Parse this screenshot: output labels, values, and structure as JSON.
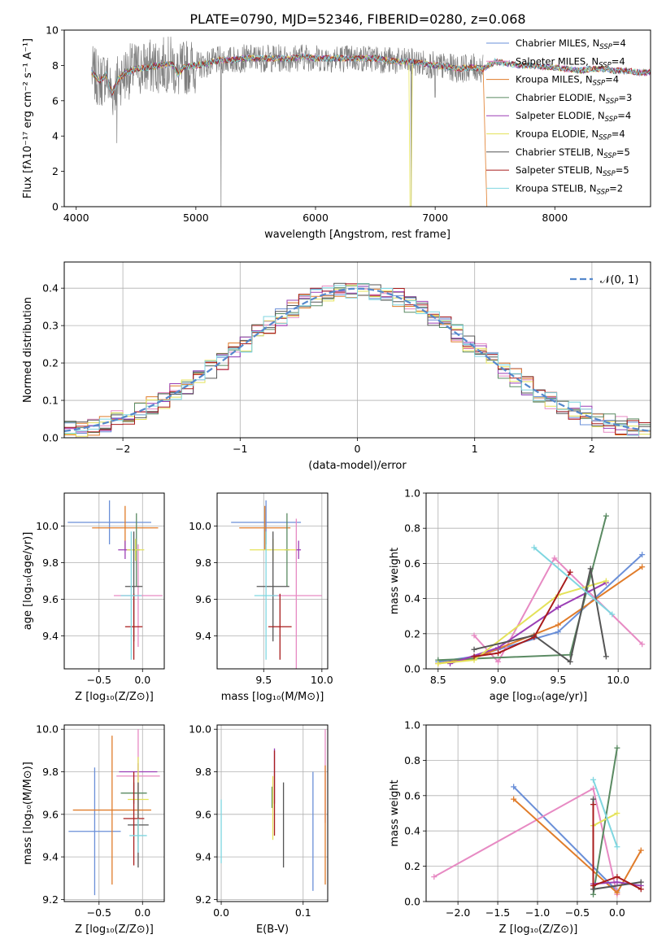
{
  "figure_title": "PLATE=0790, MJD=52346, FIBERID=0280, z=0.068",
  "colors": {
    "Chabrier MILES": "#6a8fd8",
    "Salpeter MILES": "#e78ac3",
    "Kroupa MILES": "#e07c2a",
    "Chabrier ELODIE": "#5a8a62",
    "Salpeter ELODIE": "#9b3fb5",
    "Kroupa ELODIE": "#e4e25a",
    "Chabrier STELIB": "#555555",
    "Salpeter STELIB": "#a81c1c",
    "Kroupa STELIB": "#7fd6e0",
    "data": "#808080",
    "normal": "#5588cc"
  },
  "chart_data": [
    {
      "id": "spectrum",
      "type": "line",
      "xlabel": "wavelength [Angstrom, rest frame]",
      "ylabel": "Flux [fλ10⁻¹⁷ erg cm⁻² s⁻¹ A⁻¹]",
      "xlim": [
        3900,
        8800
      ],
      "ylim": [
        0,
        10
      ],
      "xticks": [
        4000,
        5000,
        6000,
        7000,
        8000
      ],
      "yticks": [
        0,
        2,
        4,
        6,
        8,
        10
      ],
      "legend_loc": "right",
      "series": [
        {
          "name": "Chabrier MILES, N",
          "nssp": 4
        },
        {
          "name": "Salpeter MILES, N",
          "nssp": 4
        },
        {
          "name": "Kroupa MILES, N",
          "nssp": 4
        },
        {
          "name": "Chabrier ELODIE, N",
          "nssp": 3
        },
        {
          "name": "Salpeter ELODIE, N",
          "nssp": 4
        },
        {
          "name": "Kroupa ELODIE, N",
          "nssp": 4
        },
        {
          "name": "Chabrier STELIB, N",
          "nssp": 5
        },
        {
          "name": "Salpeter STELIB, N",
          "nssp": 5
        },
        {
          "name": "Kroupa STELIB, N",
          "nssp": 2
        }
      ],
      "legend_sub": "SSP",
      "model_x": [
        4130,
        4200,
        4250,
        4300,
        4350,
        4420,
        4500,
        4600,
        4700,
        4800,
        4850,
        4900,
        5000,
        5100,
        5200,
        5300,
        5400,
        5500,
        5600,
        5700,
        5800,
        5900,
        6000,
        6100,
        6200,
        6300,
        6400,
        6500,
        6600,
        6700,
        6800,
        6900,
        7000,
        7100,
        7200,
        7300,
        7400,
        7500,
        7600,
        7700,
        7800,
        7900,
        8000,
        8100,
        8200,
        8300,
        8400,
        8500,
        8600,
        8700,
        8800
      ],
      "model_y": [
        7.6,
        7.1,
        7.5,
        6.4,
        7.2,
        7.6,
        7.8,
        7.9,
        8.0,
        8.1,
        7.5,
        7.9,
        8.0,
        8.1,
        8.3,
        8.3,
        8.4,
        8.4,
        8.4,
        8.4,
        8.4,
        8.5,
        8.4,
        8.4,
        8.4,
        8.4,
        8.4,
        8.4,
        8.3,
        8.2,
        8.2,
        8.1,
        8.0,
        7.9,
        7.8,
        7.9,
        7.8,
        8.2,
        8.1,
        8.0,
        8.0,
        7.9,
        7.9,
        7.8,
        7.7,
        7.8,
        7.8,
        7.7,
        7.7,
        7.6,
        7.6
      ],
      "data_range": [
        4130,
        7400
      ],
      "dips": [
        [
          4340,
          3.6
        ],
        [
          5210,
          0.0
        ],
        [
          6800,
          0.0
        ],
        [
          7000,
          6.2
        ],
        [
          7420,
          0.0
        ]
      ]
    },
    {
      "id": "residuals",
      "type": "histogram",
      "xlabel": "(data-model)/error",
      "ylabel": "Normed distribution",
      "xlim": [
        -2.5,
        2.5
      ],
      "ylim": [
        0,
        0.47
      ],
      "xticks": [
        -2,
        -1,
        0,
        1,
        2
      ],
      "yticks": [
        0.0,
        0.1,
        0.2,
        0.3,
        0.4
      ],
      "legend": "𝒩(0, 1)",
      "legend_loc": "top-right",
      "bin_width": 0.1
    },
    {
      "id": "age-vs-Z",
      "type": "errorbar",
      "xlabel": "Z [log₁₀(Z/Z⊙)]",
      "ylabel": "age  [log₁₀(age/yr)]",
      "xlim": [
        -0.9,
        0.25
      ],
      "ylim": [
        9.22,
        10.18
      ],
      "xticks": [
        -0.5,
        0.0
      ],
      "yticks": [
        9.4,
        9.6,
        9.8,
        10.0
      ],
      "points": [
        {
          "model": "Chabrier MILES",
          "x": -0.38,
          "xerr": 0.48,
          "y": 10.02,
          "yerr": 0.12
        },
        {
          "model": "Salpeter MILES",
          "x": -0.05,
          "xerr": 0.28,
          "y": 9.62,
          "yerr": 0.28
        },
        {
          "model": "Kroupa MILES",
          "x": -0.2,
          "xerr": 0.38,
          "y": 9.99,
          "yerr": 0.12
        },
        {
          "model": "Chabrier ELODIE",
          "x": -0.07,
          "xerr": 0.04,
          "y": 9.87,
          "yerr": 0.2
        },
        {
          "model": "Salpeter ELODIE",
          "x": -0.2,
          "xerr": 0.08,
          "y": 9.87,
          "yerr": 0.05
        },
        {
          "model": "Kroupa ELODIE",
          "x": -0.08,
          "xerr": 0.1,
          "y": 9.87,
          "yerr": 0.06
        },
        {
          "model": "Chabrier STELIB",
          "x": -0.1,
          "xerr": 0.1,
          "y": 9.67,
          "yerr": 0.3
        },
        {
          "model": "Salpeter STELIB",
          "x": -0.1,
          "xerr": 0.1,
          "y": 9.45,
          "yerr": 0.18
        },
        {
          "model": "Kroupa STELIB",
          "x": -0.13,
          "xerr": 0.12,
          "y": 9.62,
          "yerr": 0.35
        }
      ]
    },
    {
      "id": "age-vs-mass",
      "type": "errorbar",
      "xlabel": "mass [log₁₀(M/M⊙)]",
      "ylabel": "",
      "xlim": [
        9.1,
        10.05
      ],
      "ylim": [
        9.22,
        10.18
      ],
      "xticks": [
        9.5,
        10.0
      ],
      "yticks": [
        9.4,
        9.6,
        9.8,
        10.0
      ],
      "points": [
        {
          "model": "Chabrier MILES",
          "x": 9.52,
          "xerr": 0.3,
          "y": 10.02,
          "yerr": 0.12
        },
        {
          "model": "Salpeter MILES",
          "x": 9.78,
          "xerr": 0.22,
          "y": 9.62,
          "yerr": 0.42
        },
        {
          "model": "Kroupa MILES",
          "x": 9.51,
          "xerr": 0.22,
          "y": 9.99,
          "yerr": 0.12
        },
        {
          "model": "Chabrier ELODIE",
          "x": 9.7,
          "xerr": 0.02,
          "y": 9.87,
          "yerr": 0.2
        },
        {
          "model": "Salpeter ELODIE",
          "x": 9.8,
          "xerr": 0.02,
          "y": 9.87,
          "yerr": 0.05
        },
        {
          "model": "Kroupa ELODIE",
          "x": 9.58,
          "xerr": 0.2,
          "y": 9.87,
          "yerr": 0.06
        },
        {
          "model": "Chabrier STELIB",
          "x": 9.58,
          "xerr": 0.14,
          "y": 9.67,
          "yerr": 0.3
        },
        {
          "model": "Salpeter STELIB",
          "x": 9.64,
          "xerr": 0.1,
          "y": 9.45,
          "yerr": 0.18
        },
        {
          "model": "Kroupa STELIB",
          "x": 9.52,
          "xerr": 0.1,
          "y": 9.62,
          "yerr": 0.35
        }
      ]
    },
    {
      "id": "weight-vs-age",
      "type": "line",
      "xlabel": "age  [log₁₀(age/yr)]",
      "ylabel": "mass weight",
      "xlim": [
        8.4,
        10.27
      ],
      "ylim": [
        0,
        1.0
      ],
      "xticks": [
        8.5,
        9.0,
        9.5,
        10.0
      ],
      "yticks": [
        0.0,
        0.2,
        0.4,
        0.6,
        0.8,
        1.0
      ],
      "series": [
        {
          "model": "Chabrier MILES",
          "x": [
            8.5,
            8.8,
            9.0,
            9.5,
            10.2
          ],
          "y": [
            0.04,
            0.07,
            0.11,
            0.21,
            0.65
          ]
        },
        {
          "model": "Salpeter MILES",
          "x": [
            8.8,
            9.0,
            9.47,
            10.2
          ],
          "y": [
            0.19,
            0.04,
            0.63,
            0.14
          ]
        },
        {
          "model": "Kroupa MILES",
          "x": [
            8.5,
            8.8,
            9.5,
            10.2
          ],
          "y": [
            0.03,
            0.06,
            0.25,
            0.58
          ]
        },
        {
          "model": "Chabrier ELODIE",
          "x": [
            8.5,
            9.6,
            9.9
          ],
          "y": [
            0.05,
            0.08,
            0.87
          ]
        },
        {
          "model": "Salpeter ELODIE",
          "x": [
            8.6,
            9.0,
            9.5,
            9.9
          ],
          "y": [
            0.03,
            0.12,
            0.35,
            0.49
          ]
        },
        {
          "model": "Kroupa ELODIE",
          "x": [
            8.5,
            8.8,
            9.5,
            9.9
          ],
          "y": [
            0.03,
            0.05,
            0.42,
            0.5
          ]
        },
        {
          "model": "Chabrier STELIB",
          "x": [
            8.8,
            9.3,
            9.6,
            9.77,
            9.9
          ],
          "y": [
            0.11,
            0.19,
            0.04,
            0.57,
            0.07
          ]
        },
        {
          "model": "Salpeter STELIB",
          "x": [
            8.8,
            9.0,
            9.3,
            9.6
          ],
          "y": [
            0.07,
            0.09,
            0.18,
            0.55
          ]
        },
        {
          "model": "Kroupa STELIB",
          "x": [
            9.3,
            9.95
          ],
          "y": [
            0.69,
            0.31
          ]
        }
      ]
    },
    {
      "id": "mass-vs-Z",
      "type": "errorbar",
      "xlabel": "Z [log₁₀(Z/Z⊙)]",
      "ylabel": "mass [log₁₀(M/M⊙)]",
      "xlim": [
        -0.9,
        0.25
      ],
      "ylim": [
        9.19,
        10.02
      ],
      "xticks": [
        -0.5,
        0.0
      ],
      "yticks": [
        9.2,
        9.4,
        9.6,
        9.8,
        10.0
      ],
      "points": [
        {
          "model": "Chabrier MILES",
          "x": -0.55,
          "xerr": 0.3,
          "y": 9.52,
          "yerr": 0.3
        },
        {
          "model": "Salpeter MILES",
          "x": -0.05,
          "xerr": 0.25,
          "y": 9.78,
          "yerr": 0.22
        },
        {
          "model": "Kroupa MILES",
          "x": -0.35,
          "xerr": 0.45,
          "y": 9.62,
          "yerr": 0.35
        },
        {
          "model": "Chabrier ELODIE",
          "x": -0.1,
          "xerr": 0.15,
          "y": 9.7,
          "yerr": 0.05
        },
        {
          "model": "Salpeter ELODIE",
          "x": -0.05,
          "xerr": 0.22,
          "y": 9.8,
          "yerr": 0.04
        },
        {
          "model": "Kroupa ELODIE",
          "x": -0.05,
          "xerr": 0.12,
          "y": 9.67,
          "yerr": 0.2
        },
        {
          "model": "Chabrier STELIB",
          "x": -0.05,
          "xerr": 0.12,
          "y": 9.55,
          "yerr": 0.2
        },
        {
          "model": "Salpeter STELIB",
          "x": -0.1,
          "xerr": 0.12,
          "y": 9.58,
          "yerr": 0.22
        },
        {
          "model": "Kroupa STELIB",
          "x": -0.05,
          "xerr": 0.1,
          "y": 9.5,
          "yerr": 0.08
        }
      ]
    },
    {
      "id": "mass-vs-ebv",
      "type": "errorbar",
      "xlabel": "E(B-V)",
      "ylabel": "",
      "xlim": [
        -0.005,
        0.13
      ],
      "ylim": [
        9.19,
        10.02
      ],
      "xticks": [
        0.0,
        0.1
      ],
      "yticks": [
        9.2,
        9.4,
        9.6,
        9.8,
        10.0
      ],
      "points": [
        {
          "model": "Chabrier MILES",
          "x": 0.112,
          "y": 9.52,
          "yerr": 0.28
        },
        {
          "model": "Salpeter MILES",
          "x": 0.127,
          "y": 9.78,
          "yerr": 0.22
        },
        {
          "model": "Kroupa MILES",
          "x": 0.127,
          "y": 9.55,
          "yerr": 0.28
        },
        {
          "model": "Chabrier ELODIE",
          "x": 0.062,
          "y": 9.68,
          "yerr": 0.05
        },
        {
          "model": "Salpeter ELODIE",
          "x": 0.065,
          "y": 9.78,
          "yerr": 0.13
        },
        {
          "model": "Kroupa ELODIE",
          "x": 0.063,
          "y": 9.63,
          "yerr": 0.15
        },
        {
          "model": "Chabrier STELIB",
          "x": 0.076,
          "y": 9.55,
          "yerr": 0.2
        },
        {
          "model": "Salpeter STELIB",
          "x": 0.065,
          "y": 9.7,
          "yerr": 0.2
        },
        {
          "model": "Kroupa STELIB",
          "x": 0.0,
          "y": 9.52,
          "yerr": 0.15
        }
      ]
    },
    {
      "id": "weight-vs-Z",
      "type": "line",
      "xlabel": "Z [log₁₀(Z/Z⊙)]",
      "ylabel": "mass weight",
      "xlim": [
        -2.4,
        0.42
      ],
      "ylim": [
        0,
        1.0
      ],
      "xticks": [
        -2.0,
        -1.5,
        -1.0,
        -0.5,
        0.0
      ],
      "yticks": [
        0.0,
        0.2,
        0.4,
        0.6,
        0.8,
        1.0
      ],
      "series": [
        {
          "model": "Chabrier MILES",
          "x": [
            -1.3,
            0.0
          ],
          "y": [
            0.65,
            0.06
          ]
        },
        {
          "model": "Salpeter MILES",
          "x": [
            -2.3,
            -0.3,
            0.0
          ],
          "y": [
            0.14,
            0.64,
            0.04
          ]
        },
        {
          "model": "Kroupa MILES",
          "x": [
            -1.3,
            0.0,
            0.3
          ],
          "y": [
            0.58,
            0.05,
            0.29
          ]
        },
        {
          "model": "Chabrier ELODIE",
          "x": [
            -0.3,
            0.0
          ],
          "y": [
            0.04,
            0.87
          ]
        },
        {
          "model": "Salpeter ELODIE",
          "x": [
            -0.3,
            0.0,
            0.3
          ],
          "y": [
            0.1,
            0.11,
            0.09
          ]
        },
        {
          "model": "Kroupa ELODIE",
          "x": [
            -0.3,
            0.0
          ],
          "y": [
            0.43,
            0.5
          ]
        },
        {
          "model": "Chabrier STELIB",
          "x": [
            -0.3,
            -0.3,
            0.3
          ],
          "y": [
            0.58,
            0.07,
            0.11
          ]
        },
        {
          "model": "Salpeter STELIB",
          "x": [
            -0.3,
            -0.3,
            0.0,
            0.3
          ],
          "y": [
            0.55,
            0.09,
            0.14,
            0.07
          ]
        },
        {
          "model": "Kroupa STELIB",
          "x": [
            -0.3,
            0.0
          ],
          "y": [
            0.69,
            0.31
          ]
        }
      ]
    }
  ]
}
